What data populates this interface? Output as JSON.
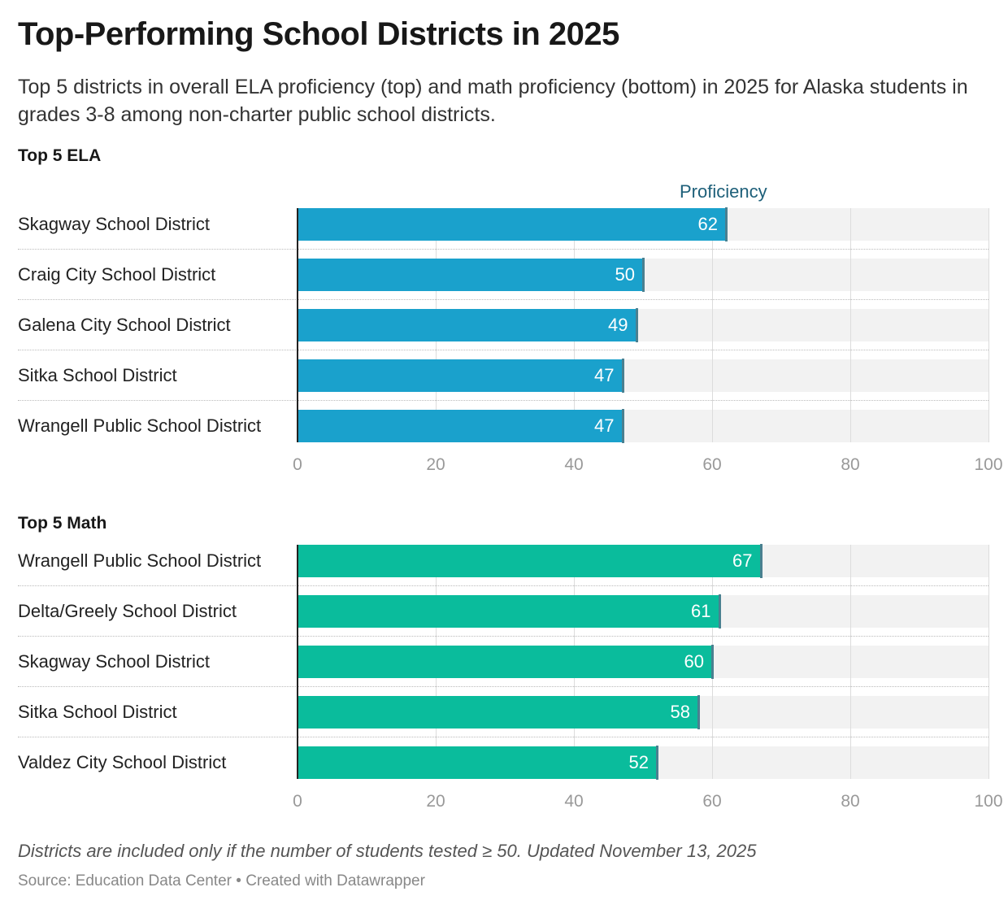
{
  "title": "Top-Performing School Districts in 2025",
  "subtitle": "Top 5 districts in overall ELA proficiency (top) and math proficiency (bottom) in 2025 for Alaska students in grades 3-8 among non-charter public school districts.",
  "note": "Districts are included only if the number of students tested ≥ 50. Updated November 13, 2025",
  "source": "Source: Education Data Center • Created with Datawrapper",
  "chart_data": [
    {
      "type": "bar",
      "title": "Top 5 ELA",
      "column_header": "Proficiency",
      "color": "#1aa1cc",
      "xlim": [
        0,
        100
      ],
      "ticks": [
        "0",
        "20",
        "40",
        "60",
        "80",
        "100"
      ],
      "categories": [
        "Skagway School District",
        "Craig City School District",
        "Galena City School District",
        "Sitka School District",
        "Wrangell Public School District"
      ],
      "values": [
        62,
        50,
        49,
        47,
        47
      ],
      "labels": [
        "62",
        "50",
        "49",
        "47",
        "47"
      ]
    },
    {
      "type": "bar",
      "title": "Top 5 Math",
      "color": "#0abc9c",
      "xlim": [
        0,
        100
      ],
      "ticks": [
        "0",
        "20",
        "40",
        "60",
        "80",
        "100"
      ],
      "categories": [
        "Wrangell Public School District",
        "Delta/Greely School District",
        "Skagway School District",
        "Sitka School District",
        "Valdez City School District"
      ],
      "values": [
        67,
        61,
        60,
        58,
        52
      ],
      "labels": [
        "67",
        "61",
        "60",
        "58",
        "52"
      ]
    }
  ]
}
